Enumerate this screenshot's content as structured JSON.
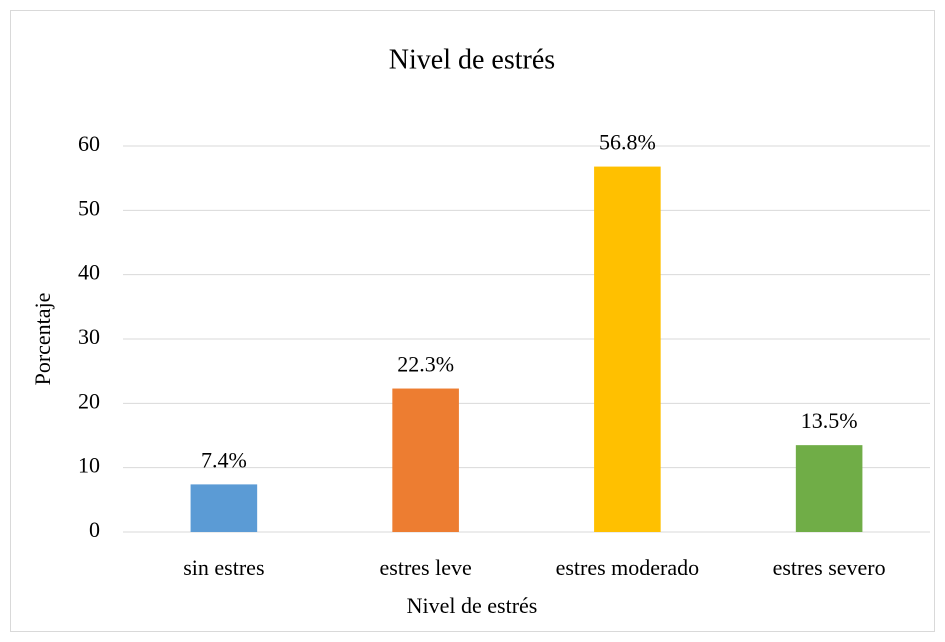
{
  "chart_data": {
    "type": "bar",
    "title": "Nivel de estrés",
    "x_label": "Nivel de estrés",
    "y_label": "Porcentaje",
    "categories": [
      "sin estres",
      "estres leve",
      "estres moderado",
      "estres severo"
    ],
    "values": [
      7.4,
      22.3,
      56.8,
      13.5
    ],
    "value_labels": [
      "7.4%",
      "22.3%",
      "56.8%",
      "13.5%"
    ],
    "colors": [
      "#5b9bd5",
      "#ed7d31",
      "#ffc000",
      "#70ad47"
    ],
    "ylim": [
      0,
      60
    ],
    "yticks": [
      0,
      10,
      20,
      30,
      40,
      50,
      60
    ],
    "grid": true
  }
}
